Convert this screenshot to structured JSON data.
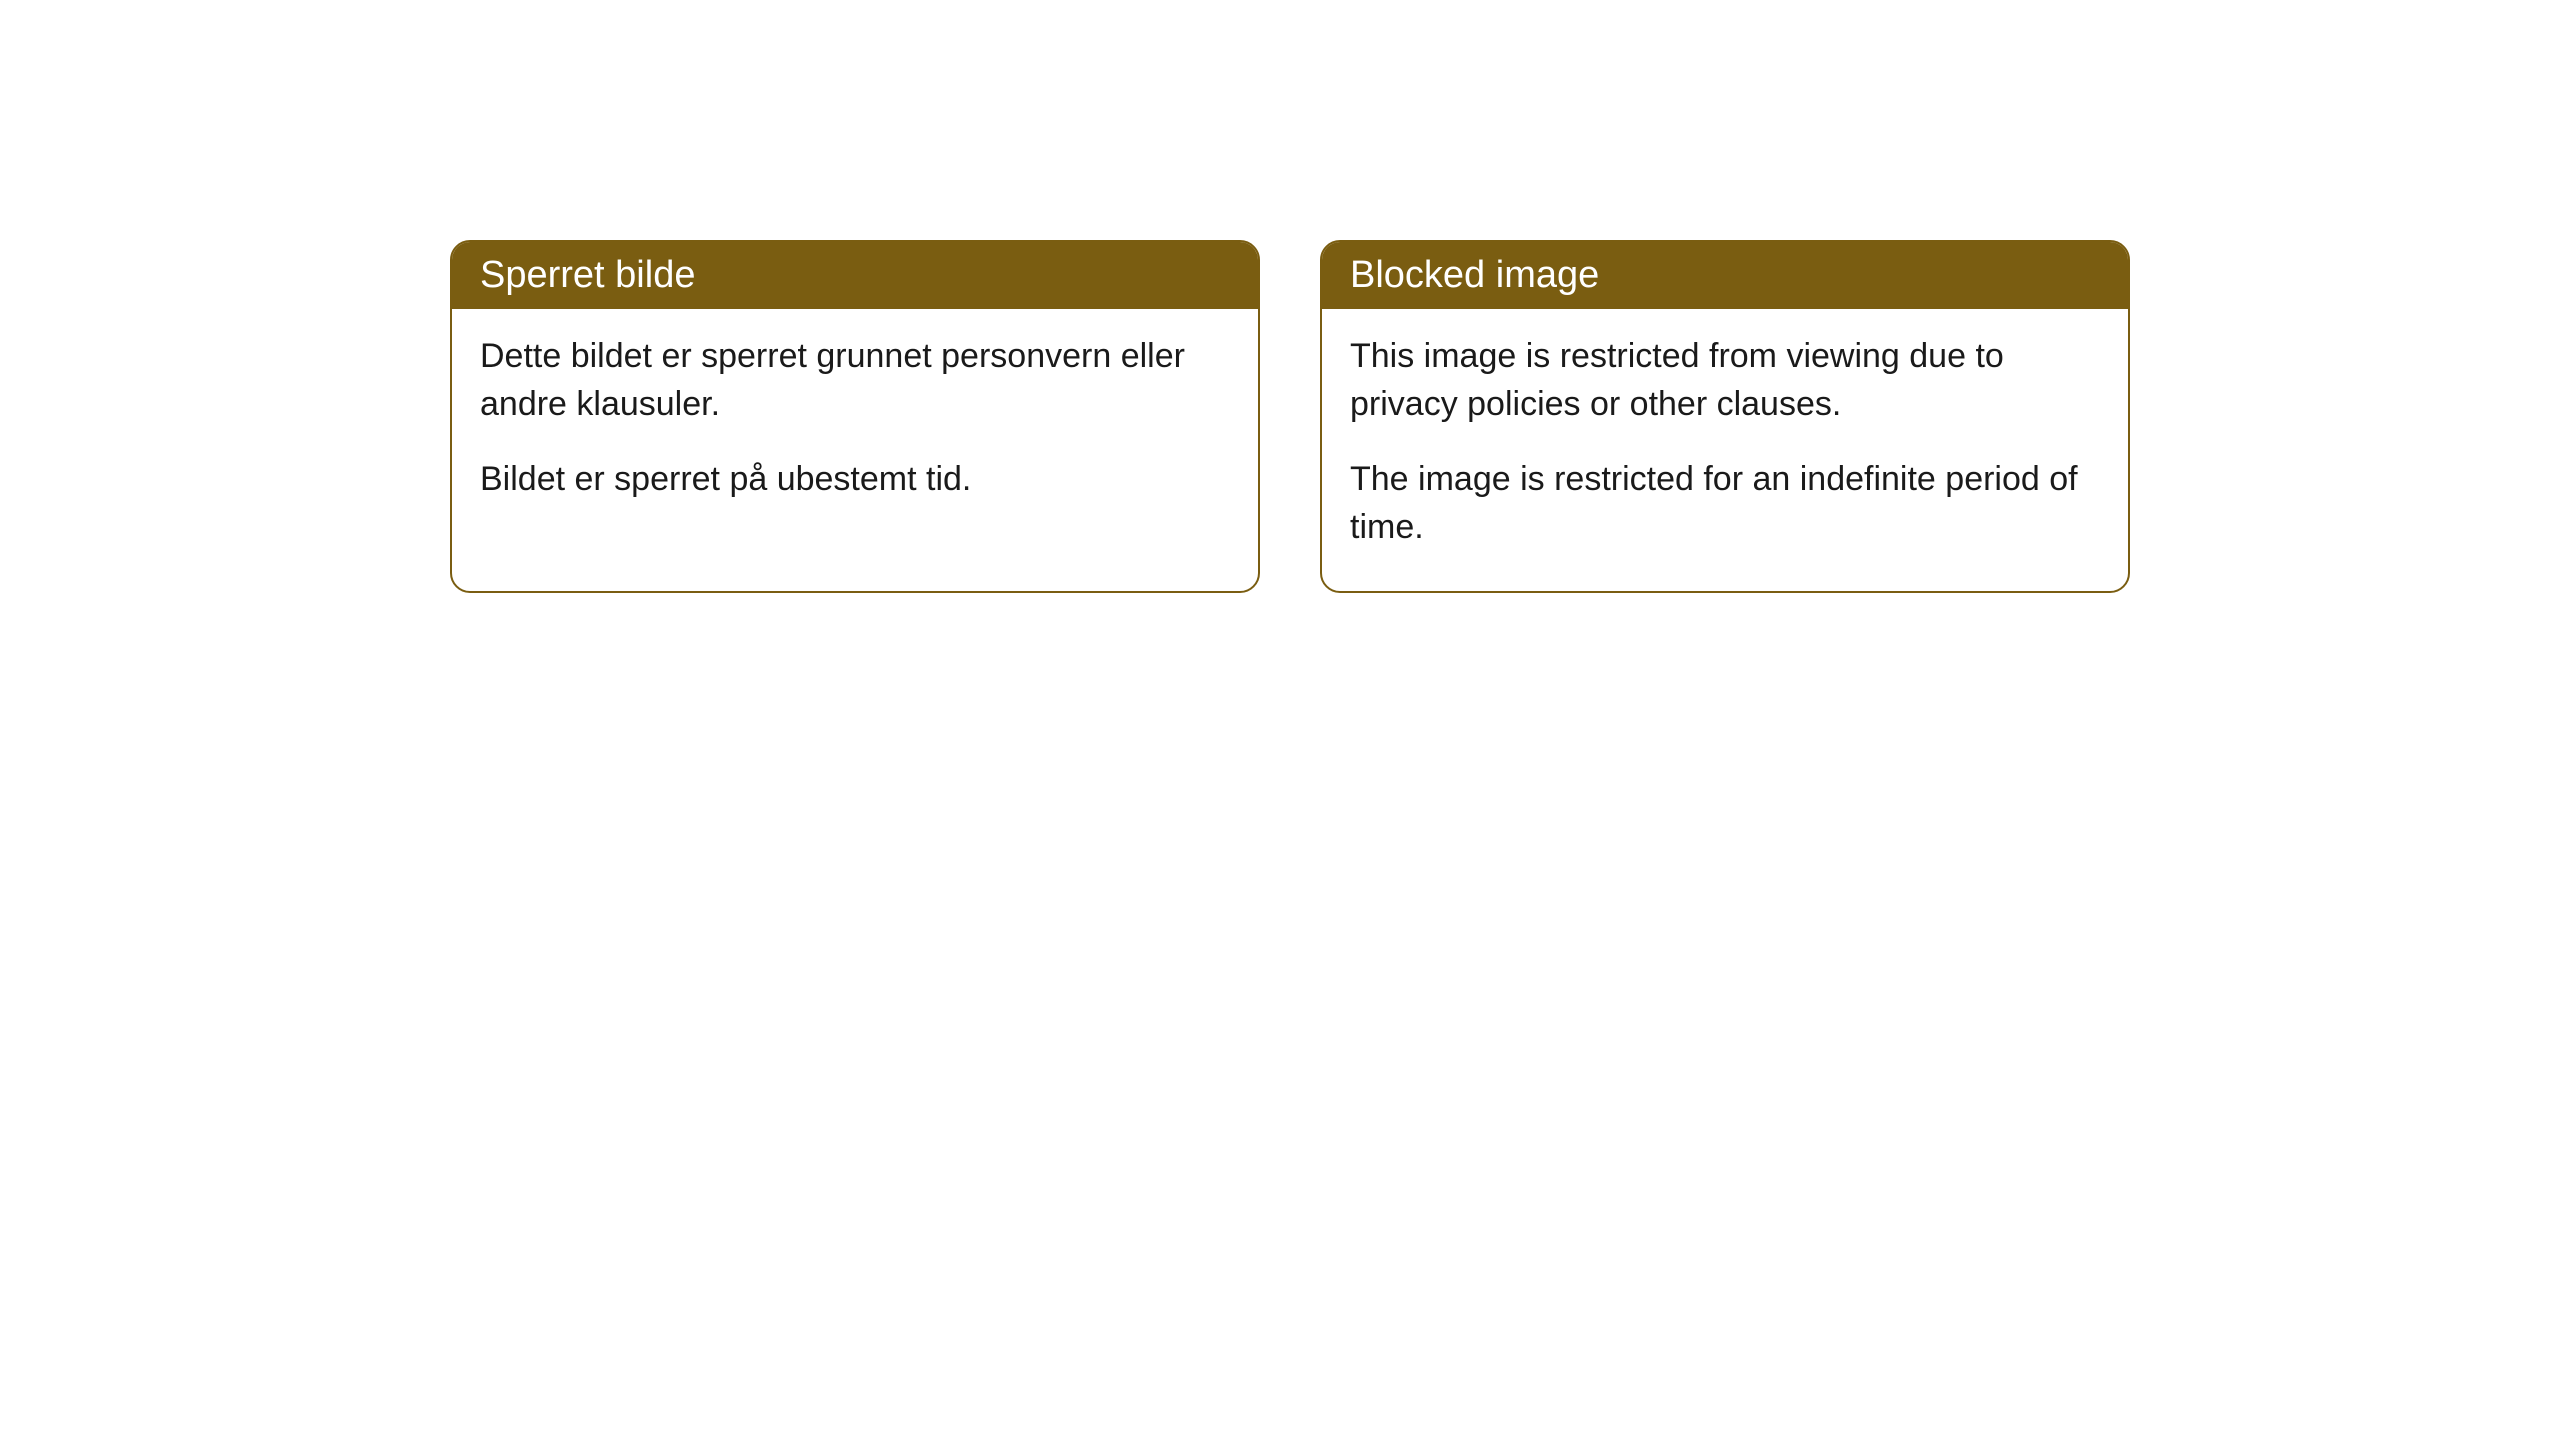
{
  "cards": {
    "norwegian": {
      "title": "Sperret bilde",
      "paragraph1": "Dette bildet er sperret grunnet personvern eller andre klausuler.",
      "paragraph2": "Bildet er sperret på ubestemt tid."
    },
    "english": {
      "title": "Blocked image",
      "paragraph1": "This image is restricted from viewing due to privacy policies or other clauses.",
      "paragraph2": "The image is restricted for an indefinite period of time."
    }
  },
  "styling": {
    "header_background": "#7a5d11",
    "header_text_color": "#ffffff",
    "border_color": "#7a5d11",
    "body_background": "#ffffff",
    "body_text_color": "#1a1a1a",
    "border_radius": 20,
    "header_fontsize": 38,
    "body_fontsize": 34
  }
}
